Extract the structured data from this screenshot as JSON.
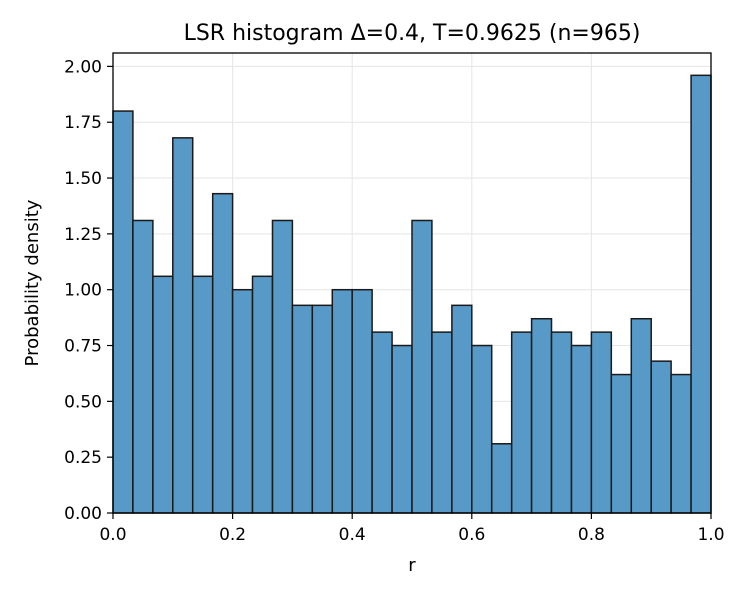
{
  "chart_data": {
    "type": "bar",
    "title": "LSR histogram Δ=0.4, T=0.9625 (n=965)",
    "xlabel": "r",
    "ylabel": "Probability density",
    "xlim": [
      0.0,
      1.0
    ],
    "ylim": [
      0.0,
      2.06
    ],
    "grid": true,
    "legend": "none",
    "bins": 30,
    "bin_width": 0.0333,
    "x": [
      0.0,
      0.0333,
      0.0667,
      0.1,
      0.1333,
      0.1667,
      0.2,
      0.2333,
      0.2667,
      0.3,
      0.3333,
      0.3667,
      0.4,
      0.4333,
      0.4667,
      0.5,
      0.5333,
      0.5667,
      0.6,
      0.6333,
      0.6667,
      0.7,
      0.7333,
      0.7667,
      0.8,
      0.8333,
      0.8667,
      0.9,
      0.9333,
      0.9667
    ],
    "values": [
      1.8,
      1.31,
      1.06,
      1.68,
      1.06,
      1.43,
      1.0,
      1.06,
      1.31,
      0.93,
      0.93,
      1.0,
      1.0,
      0.81,
      0.75,
      1.31,
      0.81,
      0.93,
      0.75,
      0.31,
      0.81,
      0.87,
      0.81,
      0.75,
      0.81,
      0.62,
      0.87,
      0.68,
      0.62,
      1.96
    ],
    "xticks": [
      "0.0",
      "0.2",
      "0.4",
      "0.6",
      "0.8",
      "1.0"
    ],
    "xtick_values": [
      0.0,
      0.2,
      0.4,
      0.6,
      0.8,
      1.0
    ],
    "yticks": [
      "0.00",
      "0.25",
      "0.50",
      "0.75",
      "1.00",
      "1.25",
      "1.50",
      "1.75",
      "2.00"
    ],
    "ytick_values": [
      0.0,
      0.25,
      0.5,
      0.75,
      1.0,
      1.25,
      1.5,
      1.75,
      2.0
    ],
    "colors": {
      "bar_fill": "#5799c7",
      "bar_edge": "#1a1a1a",
      "grid": "#e5e5e5",
      "axis": "#000000"
    }
  }
}
